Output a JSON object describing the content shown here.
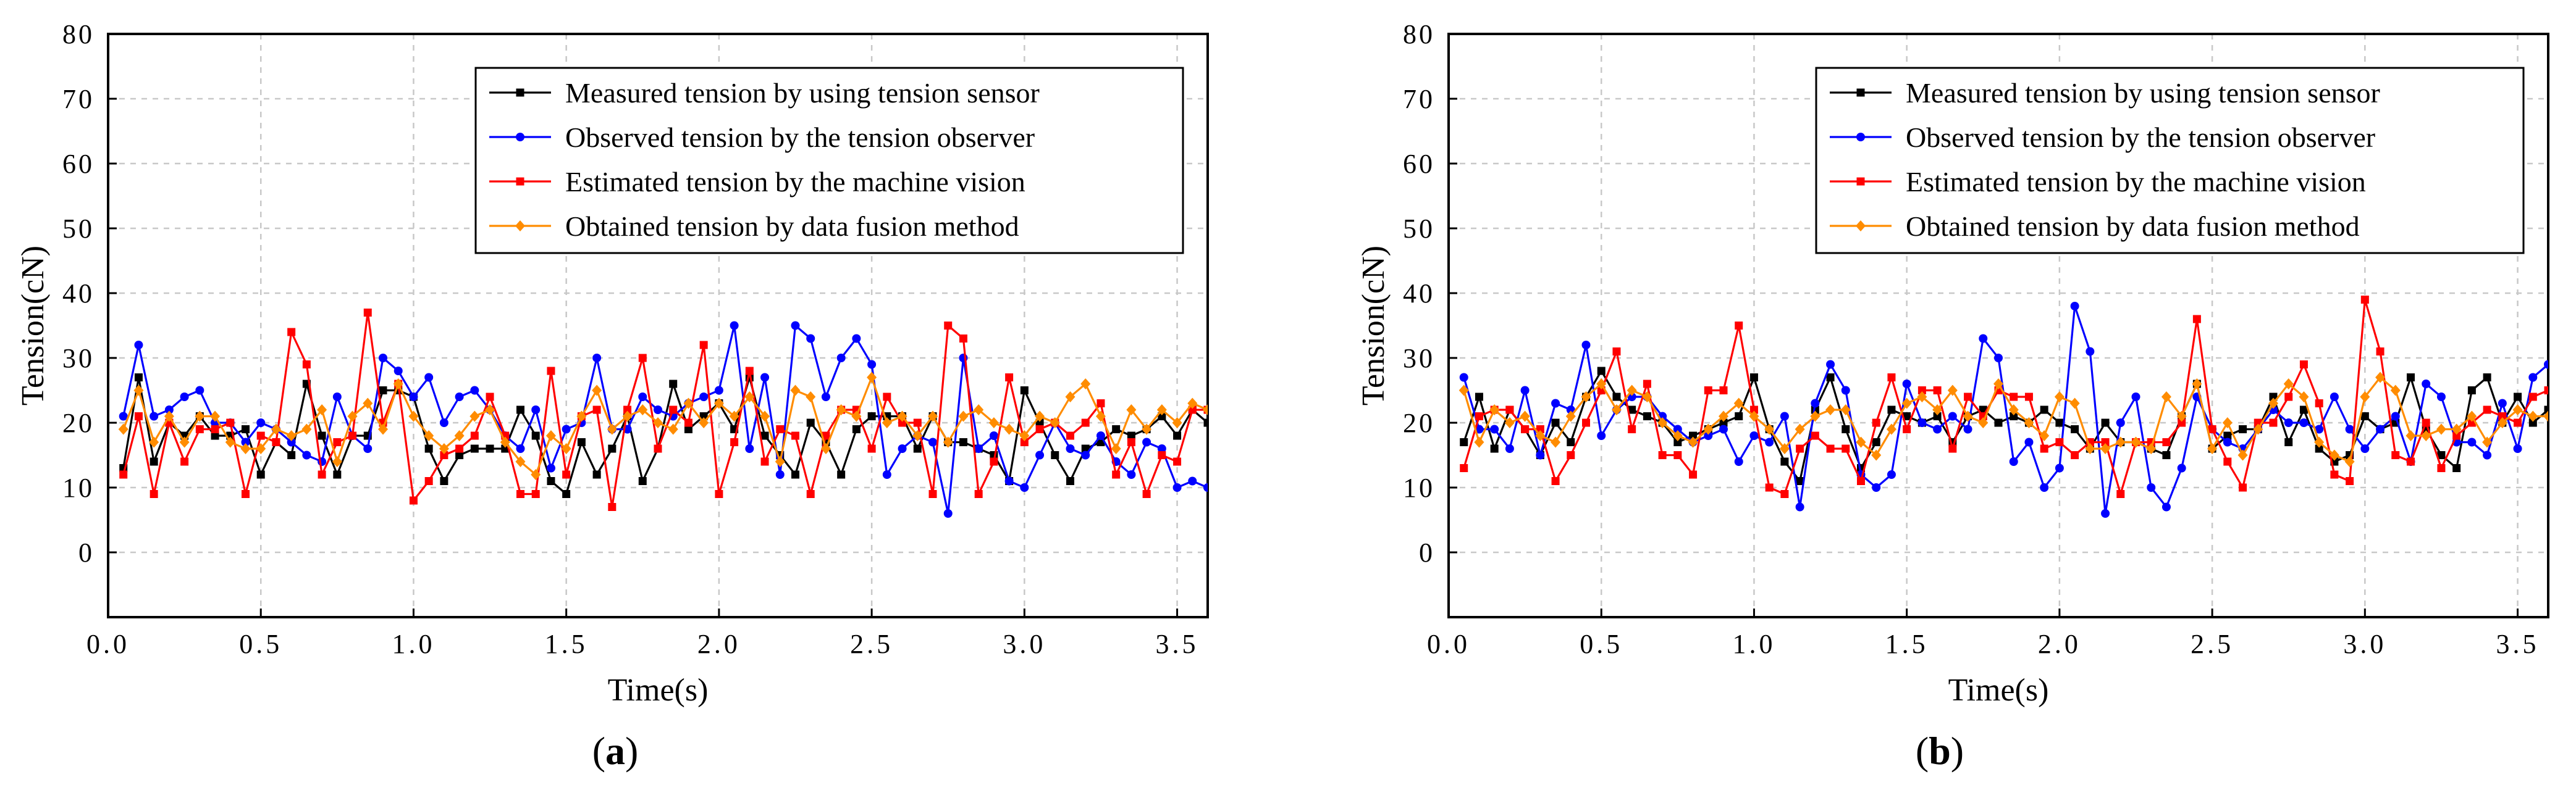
{
  "chart_data": [
    {
      "type": "line",
      "panel_label": "a",
      "xlabel": "Time(s)",
      "ylabel": "Tension(cN)",
      "xlim": [
        0.0,
        3.6
      ],
      "ylim": [
        -10,
        80
      ],
      "xticks": [
        0.0,
        0.5,
        1.0,
        1.5,
        2.0,
        2.5,
        3.0,
        3.5
      ],
      "xtick_labels": [
        "0.0",
        "0.5",
        "1.0",
        "1.5",
        "2.0",
        "2.5",
        "3.0",
        "3.5"
      ],
      "yticks": [
        0,
        10,
        20,
        30,
        40,
        50,
        60,
        70,
        80
      ],
      "ytick_labels": [
        "0",
        "10",
        "20",
        "30",
        "40",
        "50",
        "60",
        "70",
        "80"
      ],
      "grid": true,
      "legend_position": "top-right",
      "x": [
        0.05,
        0.1,
        0.15,
        0.2,
        0.25,
        0.3,
        0.35,
        0.4,
        0.45,
        0.5,
        0.55,
        0.6,
        0.65,
        0.7,
        0.75,
        0.8,
        0.85,
        0.9,
        0.95,
        1.0,
        1.05,
        1.1,
        1.15,
        1.2,
        1.25,
        1.3,
        1.35,
        1.4,
        1.45,
        1.5,
        1.55,
        1.6,
        1.65,
        1.7,
        1.75,
        1.8,
        1.85,
        1.9,
        1.95,
        2.0,
        2.05,
        2.1,
        2.15,
        2.2,
        2.25,
        2.3,
        2.35,
        2.4,
        2.45,
        2.5,
        2.55,
        2.6,
        2.65,
        2.7,
        2.75,
        2.8,
        2.85,
        2.9,
        2.95,
        3.0,
        3.05,
        3.1,
        3.15,
        3.2,
        3.25,
        3.3,
        3.35,
        3.4,
        3.45,
        3.5,
        3.55,
        3.6
      ],
      "series": [
        {
          "name": "Measured tension by using tension sensor",
          "color": "#000000",
          "marker": "square",
          "values": [
            13,
            27,
            14,
            20,
            18,
            21,
            18,
            18,
            19,
            12,
            17,
            15,
            26,
            18,
            12,
            18,
            18,
            25,
            25,
            24,
            16,
            11,
            15,
            16,
            16,
            16,
            22,
            18,
            11,
            9,
            17,
            12,
            16,
            21,
            11,
            16,
            26,
            19,
            21,
            23,
            19,
            27,
            18,
            15,
            12,
            20,
            17,
            12,
            19,
            21,
            21,
            21,
            16,
            21,
            17,
            17,
            16,
            15,
            11,
            25,
            20,
            15,
            11,
            16,
            17,
            19,
            18,
            19,
            21,
            18,
            22,
            20
          ]
        },
        {
          "name": "Observed  tension by the tension observer",
          "color": "#0000ff",
          "marker": "circle",
          "values": [
            21,
            32,
            21,
            22,
            24,
            25,
            20,
            20,
            17,
            20,
            19,
            17,
            15,
            14,
            24,
            18,
            16,
            30,
            28,
            24,
            27,
            20,
            24,
            25,
            22,
            18,
            16,
            22,
            13,
            19,
            20,
            30,
            19,
            19,
            24,
            22,
            21,
            23,
            24,
            25,
            35,
            16,
            27,
            12,
            35,
            33,
            24,
            30,
            33,
            29,
            12,
            16,
            18,
            17,
            6,
            30,
            16,
            18,
            11,
            10,
            15,
            20,
            16,
            15,
            18,
            14,
            12,
            17,
            16,
            10,
            11,
            10
          ]
        },
        {
          "name": "Estimated tension by the machine vision",
          "color": "#ff0000",
          "marker": "square",
          "values": [
            12,
            21,
            9,
            20,
            14,
            19,
            19,
            20,
            9,
            18,
            17,
            34,
            29,
            12,
            17,
            18,
            37,
            20,
            26,
            8,
            11,
            15,
            16,
            18,
            24,
            18,
            9,
            9,
            28,
            12,
            21,
            22,
            7,
            22,
            30,
            16,
            22,
            20,
            32,
            9,
            17,
            28,
            14,
            19,
            18,
            9,
            18,
            22,
            22,
            16,
            24,
            20,
            20,
            9,
            35,
            33,
            9,
            14,
            27,
            17,
            19,
            20,
            18,
            20,
            23,
            12,
            17,
            9,
            15,
            14,
            22,
            22
          ]
        },
        {
          "name": "Obtained tension by data fusion method",
          "color": "#ff8c00",
          "marker": "diamond",
          "values": [
            19,
            25,
            17,
            21,
            17,
            21,
            21,
            17,
            16,
            16,
            19,
            18,
            19,
            22,
            14,
            21,
            23,
            19,
            26,
            21,
            18,
            16,
            18,
            21,
            22,
            17,
            14,
            12,
            18,
            16,
            21,
            25,
            19,
            21,
            22,
            20,
            19,
            23,
            20,
            23,
            21,
            24,
            21,
            14,
            25,
            24,
            16,
            22,
            21,
            27,
            20,
            21,
            18,
            21,
            17,
            21,
            22,
            20,
            19,
            18,
            21,
            20,
            24,
            26,
            21,
            16,
            22,
            19,
            22,
            20,
            23,
            22
          ]
        }
      ]
    },
    {
      "type": "line",
      "panel_label": "b",
      "xlabel": "Time(s)",
      "ylabel": "Tension(cN)",
      "xlim": [
        0.0,
        3.6
      ],
      "ylim": [
        -10,
        80
      ],
      "xticks": [
        0.0,
        0.5,
        1.0,
        1.5,
        2.0,
        2.5,
        3.0,
        3.5
      ],
      "xtick_labels": [
        "0.0",
        "0.5",
        "1.0",
        "1.5",
        "2.0",
        "2.5",
        "3.0",
        "3.5"
      ],
      "yticks": [
        0,
        10,
        20,
        30,
        40,
        50,
        60,
        70,
        80
      ],
      "ytick_labels": [
        "0",
        "10",
        "20",
        "30",
        "40",
        "50",
        "60",
        "70",
        "80"
      ],
      "grid": true,
      "legend_position": "top-right",
      "x": [
        0.05,
        0.1,
        0.15,
        0.2,
        0.25,
        0.3,
        0.35,
        0.4,
        0.45,
        0.5,
        0.55,
        0.6,
        0.65,
        0.7,
        0.75,
        0.8,
        0.85,
        0.9,
        0.95,
        1.0,
        1.05,
        1.1,
        1.15,
        1.2,
        1.25,
        1.3,
        1.35,
        1.4,
        1.45,
        1.5,
        1.55,
        1.6,
        1.65,
        1.7,
        1.75,
        1.8,
        1.85,
        1.9,
        1.95,
        2.0,
        2.05,
        2.1,
        2.15,
        2.2,
        2.25,
        2.3,
        2.35,
        2.4,
        2.45,
        2.5,
        2.55,
        2.6,
        2.65,
        2.7,
        2.75,
        2.8,
        2.85,
        2.9,
        2.95,
        3.0,
        3.05,
        3.1,
        3.15,
        3.2,
        3.25,
        3.3,
        3.35,
        3.4,
        3.45,
        3.5,
        3.55,
        3.6
      ],
      "series": [
        {
          "name": "Measured tension by using tension sensor",
          "color": "#000000",
          "marker": "square",
          "values": [
            17,
            24,
            16,
            22,
            19,
            15,
            20,
            17,
            24,
            28,
            24,
            22,
            21,
            20,
            17,
            18,
            19,
            20,
            21,
            27,
            19,
            14,
            11,
            22,
            27,
            19,
            13,
            17,
            22,
            21,
            20,
            21,
            17,
            21,
            22,
            20,
            21,
            20,
            22,
            20,
            19,
            16,
            20,
            17,
            17,
            16,
            15,
            21,
            26,
            16,
            18,
            19,
            19,
            24,
            17,
            22,
            16,
            14,
            15,
            21,
            19,
            20,
            27,
            19,
            15,
            13,
            25,
            27,
            20,
            24,
            20,
            22
          ]
        },
        {
          "name": "Observed  tension by the tension observer",
          "color": "#0000ff",
          "marker": "circle",
          "values": [
            27,
            19,
            19,
            16,
            25,
            15,
            23,
            22,
            32,
            18,
            22,
            24,
            24,
            21,
            19,
            17,
            18,
            19,
            14,
            18,
            17,
            21,
            7,
            23,
            29,
            25,
            12,
            10,
            12,
            26,
            20,
            19,
            21,
            19,
            33,
            30,
            14,
            17,
            10,
            13,
            38,
            31,
            6,
            20,
            24,
            10,
            7,
            13,
            24,
            19,
            17,
            16,
            19,
            22,
            20,
            20,
            19,
            24,
            19,
            16,
            19,
            21,
            14,
            26,
            24,
            17,
            17,
            15,
            23,
            16,
            27,
            29
          ]
        },
        {
          "name": "Estimated tension by the machine vision",
          "color": "#ff0000",
          "marker": "square",
          "values": [
            13,
            21,
            22,
            22,
            19,
            19,
            11,
            15,
            20,
            25,
            31,
            19,
            26,
            15,
            15,
            12,
            25,
            25,
            35,
            22,
            10,
            9,
            16,
            18,
            16,
            16,
            11,
            20,
            27,
            19,
            25,
            25,
            16,
            24,
            21,
            25,
            24,
            24,
            16,
            17,
            15,
            17,
            17,
            9,
            17,
            17,
            17,
            20,
            36,
            19,
            14,
            10,
            20,
            20,
            24,
            29,
            23,
            12,
            11,
            39,
            31,
            15,
            14,
            20,
            13,
            18,
            20,
            22,
            21,
            20,
            24,
            25
          ]
        },
        {
          "name": "Obtained tension by data fusion method",
          "color": "#ff8c00",
          "marker": "diamond",
          "values": [
            25,
            17,
            22,
            20,
            21,
            18,
            17,
            21,
            24,
            26,
            22,
            25,
            24,
            20,
            18,
            17,
            19,
            21,
            23,
            21,
            19,
            16,
            19,
            21,
            22,
            22,
            17,
            15,
            19,
            23,
            24,
            22,
            25,
            21,
            20,
            26,
            22,
            20,
            18,
            24,
            23,
            16,
            16,
            17,
            17,
            16,
            24,
            21,
            26,
            16,
            20,
            15,
            19,
            23,
            26,
            24,
            17,
            15,
            14,
            24,
            27,
            25,
            18,
            18,
            19,
            19,
            21,
            17,
            20,
            22,
            21,
            21
          ]
        }
      ]
    }
  ]
}
